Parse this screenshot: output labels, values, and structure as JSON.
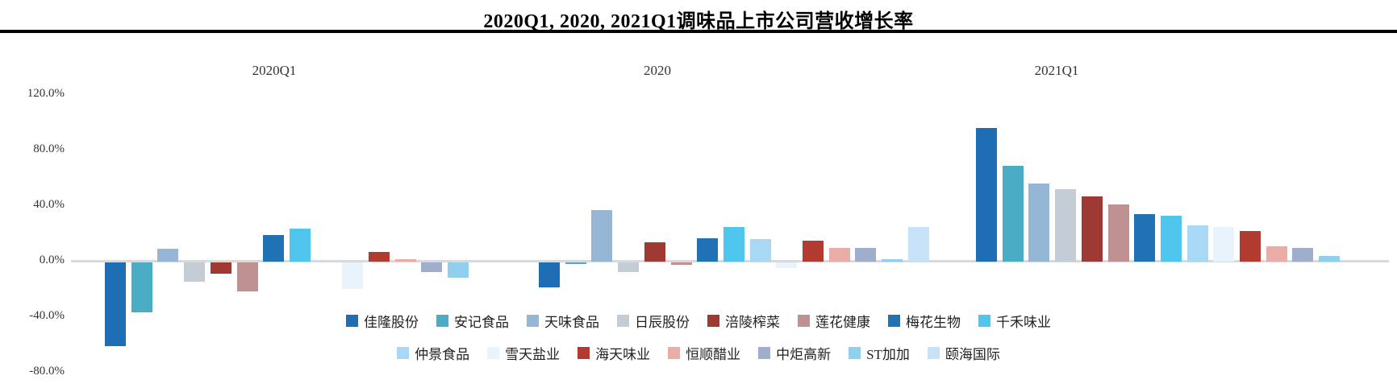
{
  "title": "2020Q1, 2020, 2021Q1调味品上市公司营收增长率",
  "chart_data": {
    "type": "bar",
    "title": "2020Q1, 2020, 2021Q1调味品上市公司营收增长率",
    "unit": "%",
    "grid": "off",
    "legend_position": "bottom",
    "group_labels": [
      "2020Q1",
      "2020",
      "2021Q1"
    ],
    "companies": [
      {
        "name": "佳隆股份",
        "color": "#1F6DB5"
      },
      {
        "name": "安记食品",
        "color": "#4BACC6"
      },
      {
        "name": "天味食品",
        "color": "#95B6D4"
      },
      {
        "name": "日辰股份",
        "color": "#C4CDD5"
      },
      {
        "name": "涪陵榨菜",
        "color": "#9E3A33"
      },
      {
        "name": "莲花健康",
        "color": "#C09191"
      },
      {
        "name": "梅花生物",
        "color": "#2171B5"
      },
      {
        "name": "千禾味业",
        "color": "#4EC6EE"
      },
      {
        "name": "仲景食品",
        "color": "#A9D8F4"
      },
      {
        "name": "雪天盐业",
        "color": "#E9F3FB"
      },
      {
        "name": "海天味业",
        "color": "#B23B31"
      },
      {
        "name": "恒顺醋业",
        "color": "#EAACA6"
      },
      {
        "name": "中炬高新",
        "color": "#9FAECD"
      },
      {
        "name": "ST加加",
        "color": "#90CFEE"
      },
      {
        "name": "颐海国际",
        "color": "#C7E2F6"
      }
    ],
    "series": [
      {
        "group": "2020Q1",
        "values": [
          -60,
          -36,
          9,
          -14,
          -8,
          -21,
          19,
          24,
          null,
          -19,
          7,
          2,
          -7,
          -11,
          null
        ]
      },
      {
        "group": "2020",
        "values": [
          -18,
          -1,
          37,
          -7,
          14,
          -2,
          17,
          25,
          16,
          -4,
          15,
          10,
          10,
          2,
          25
        ]
      },
      {
        "group": "2021Q1",
        "values": [
          96,
          69,
          56,
          52,
          47,
          41,
          34,
          33,
          26,
          25,
          22,
          11,
          10,
          4,
          null
        ]
      }
    ],
    "y_axis": {
      "min": -80,
      "max": 120,
      "ticks": [
        {
          "label": "120.0%",
          "value": 120
        },
        {
          "label": "80.0%",
          "value": 80
        },
        {
          "label": "40.0%",
          "value": 40
        },
        {
          "label": "0.0%",
          "value": 0
        },
        {
          "label": "-40.0%",
          "value": -40
        },
        {
          "label": "-80.0%",
          "value": -80
        }
      ]
    },
    "legend_rows": [
      [
        0,
        1,
        2,
        3,
        4,
        5,
        6,
        7
      ],
      [
        8,
        9,
        10,
        11,
        12,
        13,
        14
      ]
    ]
  }
}
